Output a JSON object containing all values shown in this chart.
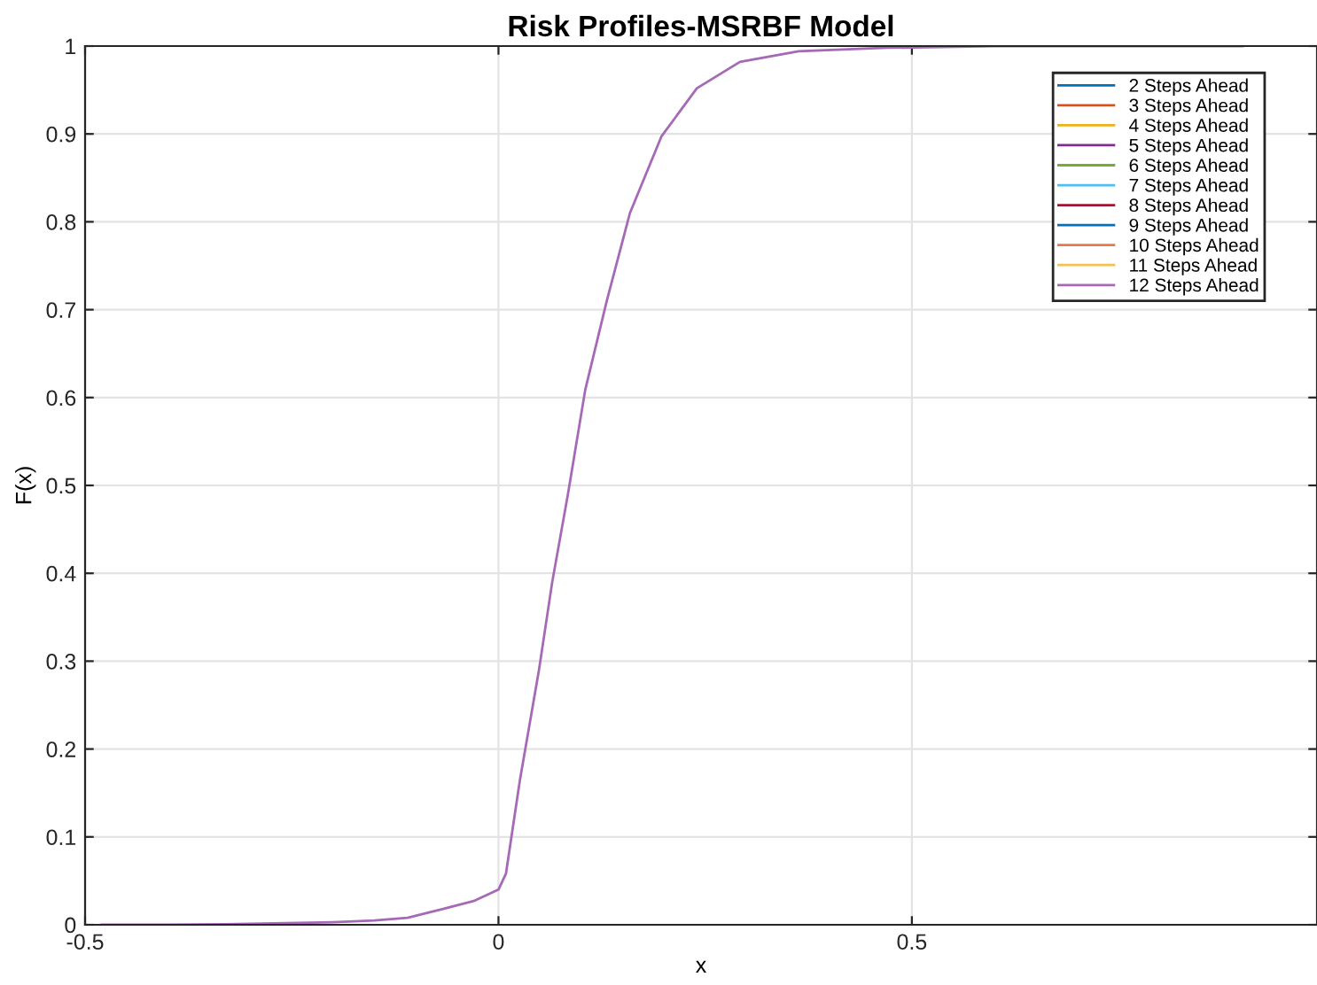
{
  "chart_data": {
    "type": "line",
    "title": "Risk Profiles-MSRBF Model",
    "xlabel": "x",
    "ylabel": "F(x)",
    "x": [
      -0.48,
      -0.4,
      -0.3,
      -0.2,
      -0.15,
      -0.11,
      -0.067,
      -0.03,
      0,
      0.009,
      0.026,
      0.049,
      0.065,
      0.084,
      0.105,
      0.131,
      0.159,
      0.197,
      0.24,
      0.292,
      0.363,
      0.47,
      0.6,
      0.75,
      0.9
    ],
    "series": [
      {
        "name": "2 Steps Ahead",
        "color": "#0072bd",
        "values": [
          null,
          null,
          null,
          null,
          null,
          null,
          null,
          null,
          null,
          null,
          null,
          null,
          null,
          null,
          null,
          null,
          null,
          null,
          null,
          null,
          null,
          null,
          null,
          null,
          null
        ]
      },
      {
        "name": "3 Steps Ahead",
        "color": "#d95319",
        "values": [
          null,
          null,
          null,
          null,
          null,
          null,
          null,
          null,
          null,
          null,
          null,
          null,
          null,
          null,
          null,
          null,
          null,
          null,
          null,
          null,
          null,
          null,
          null,
          null,
          null
        ]
      },
      {
        "name": "4 Steps Ahead",
        "color": "#edb120",
        "values": [
          null,
          null,
          null,
          null,
          null,
          null,
          null,
          null,
          null,
          null,
          null,
          null,
          null,
          null,
          null,
          null,
          null,
          null,
          null,
          null,
          null,
          null,
          null,
          null,
          null
        ]
      },
      {
        "name": "5 Steps Ahead",
        "color": "#7e2f8e",
        "values": [
          null,
          null,
          null,
          null,
          null,
          null,
          null,
          null,
          null,
          null,
          null,
          null,
          null,
          null,
          null,
          null,
          null,
          null,
          null,
          null,
          null,
          null,
          null,
          null,
          null
        ]
      },
      {
        "name": "6 Steps Ahead",
        "color": "#77ac30",
        "values": [
          null,
          null,
          null,
          null,
          null,
          null,
          null,
          null,
          null,
          null,
          null,
          null,
          null,
          null,
          null,
          null,
          null,
          null,
          null,
          null,
          null,
          null,
          null,
          null,
          null
        ]
      },
      {
        "name": "7 Steps Ahead",
        "color": "#4dbeee",
        "values": [
          null,
          null,
          null,
          null,
          null,
          null,
          null,
          null,
          null,
          null,
          null,
          null,
          null,
          null,
          null,
          null,
          null,
          null,
          null,
          null,
          null,
          null,
          null,
          null,
          null
        ]
      },
      {
        "name": "8 Steps Ahead",
        "color": "#a2142f",
        "values": [
          null,
          null,
          null,
          null,
          null,
          null,
          null,
          null,
          null,
          null,
          null,
          null,
          null,
          null,
          null,
          null,
          null,
          null,
          null,
          null,
          null,
          null,
          null,
          null,
          null
        ]
      },
      {
        "name": "9 Steps Ahead",
        "color": "#0072bd",
        "values": [
          null,
          null,
          null,
          null,
          null,
          null,
          null,
          null,
          null,
          null,
          null,
          null,
          null,
          null,
          null,
          null,
          null,
          null,
          null,
          null,
          null,
          null,
          null,
          null,
          null
        ]
      },
      {
        "name": "10 Steps Ahead",
        "color": "#e8784a",
        "values": [
          null,
          null,
          null,
          null,
          null,
          null,
          null,
          null,
          null,
          null,
          null,
          null,
          null,
          null,
          null,
          null,
          null,
          null,
          null,
          null,
          null,
          null,
          null,
          null,
          null
        ]
      },
      {
        "name": "11 Steps Ahead",
        "color": "#f2c14e",
        "values": [
          null,
          null,
          null,
          null,
          null,
          null,
          null,
          null,
          null,
          null,
          null,
          null,
          null,
          null,
          null,
          null,
          null,
          null,
          null,
          null,
          null,
          null,
          null,
          null,
          null
        ]
      },
      {
        "name": "12 Steps Ahead",
        "color": "#a569b5",
        "values": [
          0,
          0,
          0.001,
          0.003,
          0.005,
          0.008,
          0.018,
          0.027,
          0.04,
          0.058,
          0.165,
          0.29,
          0.39,
          0.49,
          0.609,
          0.71,
          0.81,
          0.897,
          0.952,
          0.982,
          0.994,
          0.998,
          1,
          1,
          1
        ]
      }
    ],
    "xlim": [
      -0.5,
      0.99
    ],
    "xticks": [
      -0.5,
      0,
      0.5
    ],
    "ylim": [
      0,
      1
    ],
    "yticks": [
      0,
      0.1,
      0.2,
      0.3,
      0.4,
      0.5,
      0.6,
      0.7,
      0.8,
      0.9,
      1
    ],
    "grid": true,
    "legend": "top right"
  }
}
